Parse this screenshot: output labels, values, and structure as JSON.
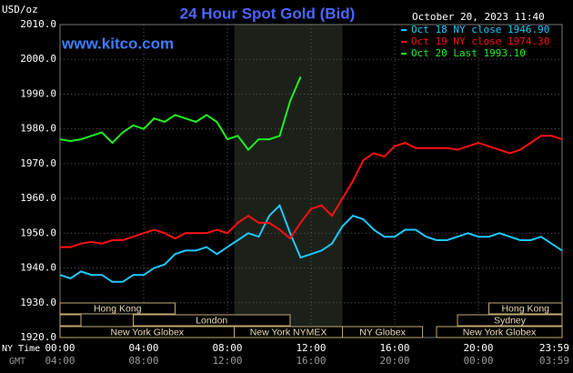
{
  "chart_data": {
    "type": "line",
    "title": "24 Hour Spot Gold (Bid)",
    "unit_label": "USD/oz",
    "timestamp": "October 20, 2023 11:40",
    "website": "www.kitco.com",
    "x_label": "NY Time",
    "x2_label": "GMT",
    "x": [
      0,
      0.5,
      1,
      1.5,
      2,
      2.5,
      3,
      3.5,
      4,
      4.5,
      5,
      5.5,
      6,
      6.5,
      7,
      7.5,
      8,
      8.5,
      9,
      9.5,
      10,
      10.5,
      11,
      11.5,
      12,
      12.5,
      13,
      13.5,
      14,
      14.5,
      15,
      15.5,
      16,
      16.5,
      17,
      17.5,
      18,
      18.5,
      19,
      19.5,
      20,
      20.5,
      21,
      21.5,
      22,
      22.5,
      23,
      23.5,
      24
    ],
    "series": [
      {
        "name": "Oct 18 NY close 1946.90",
        "color": "#1ec8ff",
        "values": [
          1938,
          1937,
          1939,
          1938,
          1938,
          1936,
          1936,
          1938,
          1938,
          1940,
          1941,
          1944,
          1945,
          1945,
          1946,
          1944,
          1946,
          1948,
          1950,
          1949,
          1955,
          1958,
          1950,
          1943,
          1944,
          1945,
          1947,
          1952,
          1955,
          1954,
          1951,
          1949,
          1949,
          1951,
          1951,
          1949,
          1948,
          1948,
          1949,
          1950,
          1949,
          1949,
          1950,
          1949,
          1948,
          1948,
          1949,
          1947,
          1945
        ]
      },
      {
        "name": "Oct 19 NY close 1974.30",
        "color": "#ff1010",
        "values": [
          1946,
          1946,
          1947,
          1947.5,
          1947,
          1948,
          1948,
          1949,
          1950,
          1951,
          1950,
          1948.5,
          1950,
          1950,
          1950,
          1951,
          1950,
          1953,
          1955,
          1953,
          1953,
          1951,
          1948.5,
          1953,
          1957,
          1958,
          1955,
          1960,
          1965,
          1971,
          1973,
          1972,
          1975,
          1976,
          1974.5,
          1974.5,
          1974.5,
          1974.5,
          1974,
          1975,
          1976,
          1975,
          1974,
          1973,
          1974,
          1976,
          1978,
          1978,
          1977
        ]
      },
      {
        "name": "Oct 20 Last 1993.10",
        "color": "#20f020",
        "values": [
          1977,
          1976.5,
          1977,
          1978,
          1979,
          1976,
          1979,
          1981,
          1980,
          1983,
          1982,
          1984,
          1983,
          1982,
          1984,
          1982,
          1977,
          1978,
          1974,
          1977,
          1977,
          1978,
          1988,
          1995,
          null,
          null,
          null,
          null,
          null,
          null,
          null,
          null,
          null,
          null,
          null,
          null,
          null,
          null,
          null,
          null,
          null,
          null,
          null,
          null,
          null,
          null,
          null,
          null,
          null
        ]
      }
    ],
    "xlim": [
      0,
      24
    ],
    "xticks": [
      {
        "value": 0,
        "label": "00:00"
      },
      {
        "value": 4,
        "label": "04:00"
      },
      {
        "value": 8,
        "label": "08:00"
      },
      {
        "value": 12,
        "label": "12:00"
      },
      {
        "value": 16,
        "label": "16:00"
      },
      {
        "value": 20,
        "label": "20:00"
      },
      {
        "value": 23.983,
        "label": "23:59"
      }
    ],
    "x2ticks": [
      {
        "value": 0,
        "label": "04:00"
      },
      {
        "value": 4,
        "label": "08:00"
      },
      {
        "value": 8,
        "label": "12:00"
      },
      {
        "value": 12,
        "label": "16:00"
      },
      {
        "value": 16,
        "label": "20:00"
      },
      {
        "value": 20,
        "label": "00:00"
      },
      {
        "value": 23.983,
        "label": "03:59"
      }
    ],
    "ylim": [
      1920,
      2010
    ],
    "yticks": [
      {
        "value": 1920,
        "label": "1920.0"
      },
      {
        "value": 1930,
        "label": "1930.0"
      },
      {
        "value": 1940,
        "label": "1940.0"
      },
      {
        "value": 1950,
        "label": "1950.0"
      },
      {
        "value": 1960,
        "label": "1960.0"
      },
      {
        "value": 1970,
        "label": "1970.0"
      },
      {
        "value": 1980,
        "label": "1980.0"
      },
      {
        "value": 1990,
        "label": "1990.0"
      },
      {
        "value": 2000,
        "label": "2000.0"
      },
      {
        "value": 2010,
        "label": "2010.0"
      }
    ],
    "grid": true,
    "highlight_range": [
      8.33,
      13.5
    ],
    "sessions": [
      [
        {
          "label": "Hong Kong",
          "start": 0,
          "end": 5.5
        },
        {
          "label": "Hong Kong",
          "start": 20.5,
          "end": 24
        }
      ],
      [
        {
          "label": null,
          "start": 0,
          "end": 1
        },
        {
          "label": "London",
          "start": 3.5,
          "end": 11
        },
        {
          "label": "Sydney",
          "start": 19,
          "end": 24
        }
      ],
      [
        {
          "label": "New York Globex",
          "start": 0,
          "end": 8.33
        },
        {
          "label": "New York NYMEX",
          "start": 8.33,
          "end": 13.5
        },
        {
          "label": "NY Globex",
          "start": 13.5,
          "end": 17.33
        },
        {
          "label": "New York Globex",
          "start": 18,
          "end": 24
        }
      ]
    ]
  }
}
